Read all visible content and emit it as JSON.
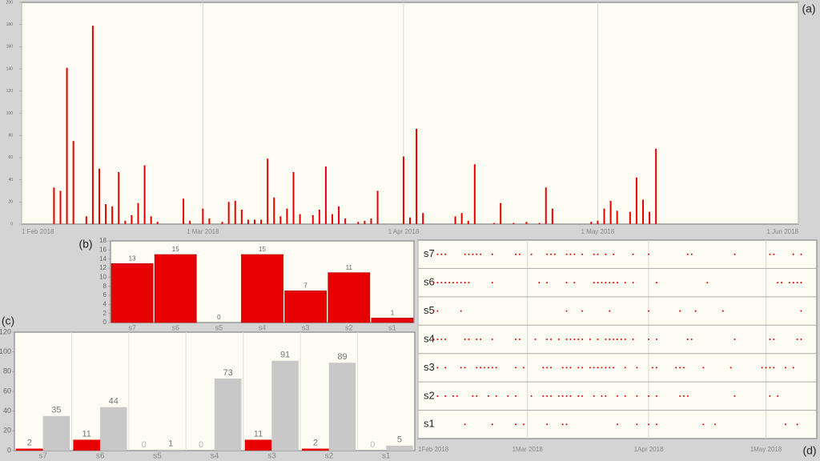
{
  "chart_data": [
    {
      "type": "bar",
      "label": "(a)",
      "color": "#e60000",
      "grid": "x",
      "x": [
        "2018-02-06",
        "2018-02-07",
        "2018-02-08",
        "2018-02-09",
        "2018-02-11",
        "2018-02-12",
        "2018-02-13",
        "2018-02-14",
        "2018-02-15",
        "2018-02-16",
        "2018-02-17",
        "2018-02-18",
        "2018-02-19",
        "2018-02-20",
        "2018-02-21",
        "2018-02-22",
        "2018-02-26",
        "2018-02-27",
        "2018-03-01",
        "2018-03-02",
        "2018-03-04",
        "2018-03-05",
        "2018-03-06",
        "2018-03-07",
        "2018-03-08",
        "2018-03-09",
        "2018-03-10",
        "2018-03-11",
        "2018-03-12",
        "2018-03-13",
        "2018-03-14",
        "2018-03-15",
        "2018-03-16",
        "2018-03-18",
        "2018-03-19",
        "2018-03-20",
        "2018-03-21",
        "2018-03-22",
        "2018-03-23",
        "2018-03-25",
        "2018-03-26",
        "2018-03-27",
        "2018-03-28",
        "2018-04-01",
        "2018-04-02",
        "2018-04-03",
        "2018-04-04",
        "2018-04-09",
        "2018-04-10",
        "2018-04-11",
        "2018-04-12",
        "2018-04-15",
        "2018-04-16",
        "2018-04-18",
        "2018-04-20",
        "2018-04-22",
        "2018-04-23",
        "2018-04-24",
        "2018-04-30",
        "2018-05-01",
        "2018-05-02",
        "2018-05-03",
        "2018-05-04",
        "2018-05-06",
        "2018-05-07",
        "2018-05-08",
        "2018-05-09",
        "2018-05-10"
      ],
      "values": [
        33,
        30,
        141,
        75,
        7,
        179,
        50,
        18,
        16,
        47,
        3,
        8,
        19,
        53,
        7,
        2,
        23,
        3,
        14,
        5,
        2,
        20,
        21,
        13,
        4,
        4,
        4,
        59,
        24,
        7,
        14,
        47,
        9,
        8,
        13,
        52,
        9,
        16,
        5,
        2,
        3,
        5,
        30,
        61,
        6,
        86,
        10,
        7,
        10,
        3,
        54,
        1,
        19,
        1,
        2,
        1,
        33,
        14,
        2,
        3,
        14,
        21,
        12,
        11,
        42,
        22,
        11,
        68
      ],
      "xlim": [
        "2018-02-01",
        "2018-06-01"
      ],
      "xticks": [
        {
          "value": "2018-02-01",
          "label": "1 Feb 2018"
        },
        {
          "value": "2018-03-01",
          "label": "1 Mar 2018"
        },
        {
          "value": "2018-04-01",
          "label": "1 Apr 2018"
        },
        {
          "value": "2018-05-01",
          "label": "1 May 2018"
        },
        {
          "value": "2018-06-01",
          "label": "1 Jun 2018"
        }
      ],
      "ylim": [
        0,
        200
      ],
      "yticks": [
        0,
        20,
        40,
        60,
        80,
        100,
        120,
        140,
        160,
        180,
        200
      ]
    },
    {
      "type": "bar",
      "label": "(b)",
      "color": "#e60000",
      "grid": false,
      "categories": [
        "s7",
        "s6",
        "s5",
        "s4",
        "s3",
        "s2",
        "s1"
      ],
      "values": [
        13,
        15,
        0,
        15,
        7,
        11,
        1
      ],
      "ylim": [
        0,
        18
      ],
      "yticks": [
        0,
        2,
        4,
        6,
        8,
        10,
        12,
        14,
        16,
        18
      ]
    },
    {
      "type": "bar",
      "label": "(c)",
      "grid": false,
      "categories": [
        "s7",
        "s6",
        "s5",
        "s4",
        "s3",
        "s2",
        "s1"
      ],
      "series": [
        {
          "color": "#e60000",
          "values": [
            2,
            11,
            0,
            0,
            11,
            2,
            0
          ]
        },
        {
          "color": "#c8c8c8",
          "values": [
            35,
            44,
            1,
            73,
            91,
            89,
            5
          ]
        }
      ],
      "ylim": [
        0,
        120
      ],
      "yticks": [
        0,
        20,
        40,
        60,
        80,
        100,
        120
      ]
    },
    {
      "type": "strip",
      "label": "(d)",
      "color": "#e60000",
      "grid": "x",
      "xlim": [
        "2018-02-01",
        "2018-05-14"
      ],
      "xticks": [
        {
          "value": "2018-02-01",
          "label": "1Feb 2018"
        },
        {
          "value": "2018-03-01",
          "label": "1Mar 2018"
        },
        {
          "value": "2018-04-01",
          "label": "1Apr 2018"
        },
        {
          "value": "2018-05-01",
          "label": "1May 2018"
        }
      ],
      "series": [
        {
          "name": "s7",
          "x": [
            "2018-02-06",
            "2018-02-07",
            "2018-02-08",
            "2018-02-13",
            "2018-02-14",
            "2018-02-15",
            "2018-02-16",
            "2018-02-17",
            "2018-02-20",
            "2018-02-26",
            "2018-02-27",
            "2018-03-02",
            "2018-03-06",
            "2018-03-07",
            "2018-03-08",
            "2018-03-11",
            "2018-03-12",
            "2018-03-13",
            "2018-03-15",
            "2018-03-18",
            "2018-03-19",
            "2018-03-21",
            "2018-03-23",
            "2018-03-28",
            "2018-04-01",
            "2018-04-11",
            "2018-04-12",
            "2018-04-23",
            "2018-05-02",
            "2018-05-03",
            "2018-05-08",
            "2018-05-10"
          ]
        },
        {
          "name": "s6",
          "x": [
            "2018-02-05",
            "2018-02-06",
            "2018-02-07",
            "2018-02-08",
            "2018-02-09",
            "2018-02-10",
            "2018-02-11",
            "2018-02-12",
            "2018-02-13",
            "2018-02-14",
            "2018-02-20",
            "2018-03-04",
            "2018-03-06",
            "2018-03-11",
            "2018-03-13",
            "2018-03-18",
            "2018-03-19",
            "2018-03-20",
            "2018-03-21",
            "2018-03-22",
            "2018-03-23",
            "2018-03-24",
            "2018-03-26",
            "2018-03-28",
            "2018-04-03",
            "2018-04-16",
            "2018-05-04",
            "2018-05-05",
            "2018-05-07",
            "2018-05-08",
            "2018-05-09",
            "2018-05-10"
          ]
        },
        {
          "name": "s5",
          "x": [
            "2018-02-05",
            "2018-02-06",
            "2018-02-12",
            "2018-03-11",
            "2018-03-15",
            "2018-03-22",
            "2018-04-01",
            "2018-04-09",
            "2018-04-13",
            "2018-04-20",
            "2018-05-10"
          ]
        },
        {
          "name": "s4",
          "x": [
            "2018-02-05",
            "2018-02-06",
            "2018-02-07",
            "2018-02-08",
            "2018-02-13",
            "2018-02-14",
            "2018-02-16",
            "2018-02-17",
            "2018-02-20",
            "2018-02-26",
            "2018-02-27",
            "2018-03-03",
            "2018-03-06",
            "2018-03-07",
            "2018-03-09",
            "2018-03-11",
            "2018-03-12",
            "2018-03-13",
            "2018-03-14",
            "2018-03-15",
            "2018-03-17",
            "2018-03-19",
            "2018-03-21",
            "2018-03-22",
            "2018-03-23",
            "2018-03-24",
            "2018-03-25",
            "2018-03-26",
            "2018-03-28",
            "2018-04-01",
            "2018-04-03",
            "2018-04-11",
            "2018-04-12",
            "2018-04-23",
            "2018-05-02",
            "2018-05-03",
            "2018-05-09",
            "2018-05-10"
          ]
        },
        {
          "name": "s3",
          "x": [
            "2018-02-06",
            "2018-02-08",
            "2018-02-12",
            "2018-02-13",
            "2018-02-16",
            "2018-02-17",
            "2018-02-18",
            "2018-02-19",
            "2018-02-20",
            "2018-02-21",
            "2018-02-26",
            "2018-02-28",
            "2018-03-05",
            "2018-03-06",
            "2018-03-07",
            "2018-03-10",
            "2018-03-11",
            "2018-03-12",
            "2018-03-14",
            "2018-03-15",
            "2018-03-17",
            "2018-03-18",
            "2018-03-19",
            "2018-03-20",
            "2018-03-21",
            "2018-03-22",
            "2018-03-23",
            "2018-03-26",
            "2018-03-29",
            "2018-04-02",
            "2018-04-03",
            "2018-04-08",
            "2018-04-09",
            "2018-04-10",
            "2018-04-15",
            "2018-04-22",
            "2018-04-30",
            "2018-05-01",
            "2018-05-02",
            "2018-05-03",
            "2018-05-06",
            "2018-05-08"
          ]
        },
        {
          "name": "s2",
          "x": [
            "2018-02-06",
            "2018-02-08",
            "2018-02-10",
            "2018-02-11",
            "2018-02-15",
            "2018-02-16",
            "2018-02-19",
            "2018-02-21",
            "2018-02-24",
            "2018-02-26",
            "2018-03-02",
            "2018-03-05",
            "2018-03-06",
            "2018-03-07",
            "2018-03-09",
            "2018-03-10",
            "2018-03-11",
            "2018-03-12",
            "2018-03-14",
            "2018-03-15",
            "2018-03-18",
            "2018-03-20",
            "2018-03-21",
            "2018-03-24",
            "2018-03-26",
            "2018-03-29",
            "2018-04-01",
            "2018-04-03",
            "2018-04-09",
            "2018-04-10",
            "2018-04-11",
            "2018-04-23",
            "2018-05-02",
            "2018-05-04"
          ]
        },
        {
          "name": "s1",
          "x": [
            "2018-02-13",
            "2018-02-20",
            "2018-02-26",
            "2018-02-28",
            "2018-03-06",
            "2018-03-10",
            "2018-03-11",
            "2018-03-24",
            "2018-03-29",
            "2018-04-01",
            "2018-04-03",
            "2018-04-15",
            "2018-04-18",
            "2018-05-06",
            "2018-05-09"
          ]
        }
      ]
    }
  ]
}
